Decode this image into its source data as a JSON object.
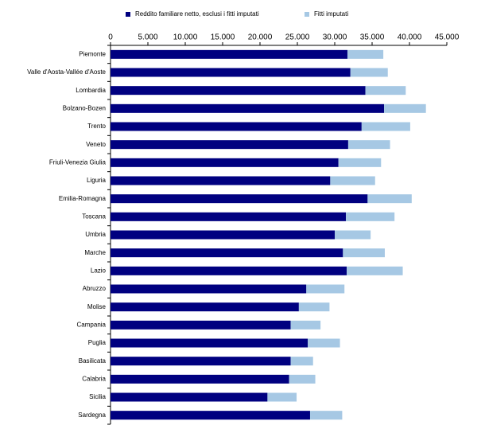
{
  "chart_data": {
    "type": "stacked-bar-horizontal",
    "categories": [
      "Piemonte",
      "Valle d'Aosta-Vallée d'Aoste",
      "Lombardia",
      "Bolzano-Bozen",
      "Trento",
      "Veneto",
      "Friuli-Venezia Giulia",
      "Liguria",
      "Emilia-Romagna",
      "Toscana",
      "Umbria",
      "Marche",
      "Lazio",
      "Abruzzo",
      "Molise",
      "Campania",
      "Puglia",
      "Basilicata",
      "Calabria",
      "Sicilia",
      "Sardegna"
    ],
    "series": [
      {
        "name": "Reddito familiare netto, esclusi i fitti imputati",
        "color": "#000080",
        "values": [
          31700,
          32100,
          34100,
          36600,
          33600,
          31800,
          30500,
          29400,
          34400,
          31500,
          30000,
          31100,
          31600,
          26200,
          25200,
          24100,
          26400,
          24100,
          23900,
          21000,
          26700
        ]
      },
      {
        "name": "Fitti imputati",
        "color": "#a6c8e4",
        "values": [
          4800,
          5000,
          5400,
          5600,
          6500,
          5600,
          5700,
          6000,
          5900,
          6500,
          4800,
          5600,
          7500,
          5100,
          4100,
          4000,
          4300,
          3000,
          3500,
          3900,
          4300
        ]
      }
    ],
    "xlim": [
      0,
      45000
    ],
    "xticks": [
      0,
      {
        "value": 5000,
        "label": "5.000"
      },
      {
        "value": 10000,
        "label": "10.000"
      },
      {
        "value": 15000,
        "label": "15.000"
      },
      {
        "value": 20000,
        "label": "20.000"
      },
      {
        "value": 25000,
        "label": "25.000"
      },
      {
        "value": 30000,
        "label": "30.000"
      },
      {
        "value": 35000,
        "label": "35.000"
      },
      {
        "value": 40000,
        "label": "40.000"
      },
      {
        "value": 45000,
        "label": "45.000"
      }
    ]
  }
}
